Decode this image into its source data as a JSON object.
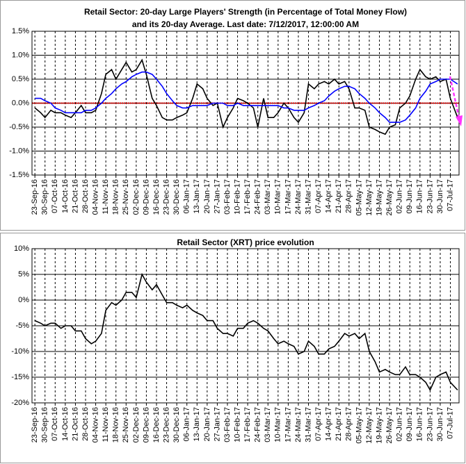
{
  "chart_data": [
    {
      "type": "line",
      "title": [
        "Retail Sector: 20-day Large Players' Strength (in Percentage of Total Money Flow)",
        "and its 20-day Average. Last date: 7/12/2017, 12:00:00 AM"
      ],
      "x": [
        "23-Sep-16",
        "27-Sep-16",
        "30-Sep-16",
        "04-Oct-16",
        "07-Oct-16",
        "11-Oct-16",
        "14-Oct-16",
        "18-Oct-16",
        "21-Oct-16",
        "25-Oct-16",
        "28-Oct-16",
        "01-Nov-16",
        "04-Nov-16",
        "08-Nov-16",
        "11-Nov-16",
        "15-Nov-16",
        "18-Nov-16",
        "22-Nov-16",
        "25-Nov-16",
        "29-Nov-16",
        "02-Dec-16",
        "06-Dec-16",
        "09-Dec-16",
        "13-Dec-16",
        "16-Dec-16",
        "20-Dec-16",
        "23-Dec-16",
        "27-Dec-16",
        "30-Dec-16",
        "03-Jan-17",
        "06-Jan-17",
        "10-Jan-17",
        "13-Jan-17",
        "17-Jan-17",
        "20-Jan-17",
        "24-Jan-17",
        "27-Jan-17",
        "31-Jan-17",
        "03-Feb-17",
        "07-Feb-17",
        "10-Feb-17",
        "14-Feb-17",
        "17-Feb-17",
        "21-Feb-17",
        "24-Feb-17",
        "28-Feb-17",
        "03-Mar-17",
        "07-Mar-17",
        "10-Mar-17",
        "14-Mar-17",
        "17-Mar-17",
        "21-Mar-17",
        "24-Mar-17",
        "28-Mar-17",
        "31-Mar-17",
        "04-Apr-17",
        "07-Apr-17",
        "11-Apr-17",
        "14-Apr-17",
        "18-Apr-17",
        "21-Apr-17",
        "25-Apr-17",
        "28-Apr-17",
        "02-May-17",
        "05-May-17",
        "09-May-17",
        "12-May-17",
        "16-May-17",
        "19-May-17",
        "23-May-17",
        "26-May-17",
        "30-May-17",
        "02-Jun-17",
        "06-Jun-17",
        "09-Jun-17",
        "13-Jun-17",
        "16-Jun-17",
        "20-Jun-17",
        "23-Jun-17",
        "27-Jun-17",
        "30-Jun-17",
        "04-Jul-17",
        "07-Jul-17",
        "12-Jul-17"
      ],
      "series": [
        {
          "color": "#000000",
          "values": [
            -0.1,
            -0.2,
            -0.3,
            -0.15,
            -0.2,
            -0.2,
            -0.25,
            -0.3,
            -0.2,
            -0.05,
            -0.2,
            -0.2,
            -0.15,
            0.2,
            0.6,
            0.7,
            0.5,
            0.7,
            0.85,
            0.65,
            0.7,
            0.9,
            0.6,
            0.1,
            -0.05,
            -0.3,
            -0.35,
            -0.35,
            -0.3,
            -0.25,
            -0.2,
            0.1,
            0.4,
            0.3,
            0.1,
            -0.05,
            0.0,
            -0.5,
            -0.3,
            -0.1,
            0.1,
            0.05,
            0.0,
            -0.1,
            -0.5,
            0.1,
            -0.3,
            -0.3,
            -0.2,
            0.0,
            -0.1,
            -0.3,
            -0.4,
            -0.2,
            0.4,
            0.3,
            0.4,
            0.45,
            0.4,
            0.5,
            0.4,
            0.45,
            0.3,
            -0.1,
            -0.1,
            -0.15,
            -0.5,
            -0.55,
            -0.6,
            -0.65,
            -0.5,
            -0.45,
            -0.1,
            0.0,
            0.15,
            0.5,
            0.7,
            0.55,
            0.5,
            0.55,
            0.45,
            0.5,
            0.1,
            -0.3
          ]
        },
        {
          "color": "#0000ff",
          "values": [
            0.1,
            0.1,
            0.05,
            0.0,
            -0.1,
            -0.15,
            -0.2,
            -0.2,
            -0.2,
            -0.2,
            -0.15,
            -0.15,
            -0.1,
            0.0,
            0.1,
            0.2,
            0.3,
            0.4,
            0.45,
            0.55,
            0.6,
            0.65,
            0.65,
            0.6,
            0.5,
            0.35,
            0.2,
            0.05,
            -0.05,
            -0.1,
            -0.1,
            -0.05,
            -0.05,
            -0.05,
            -0.05,
            0.0,
            0.0,
            0.0,
            -0.05,
            -0.05,
            0.0,
            -0.05,
            -0.05,
            -0.05,
            -0.05,
            -0.05,
            -0.05,
            -0.05,
            -0.05,
            -0.1,
            -0.1,
            -0.15,
            -0.15,
            -0.15,
            -0.1,
            -0.05,
            0.0,
            0.05,
            0.15,
            0.25,
            0.3,
            0.35,
            0.35,
            0.3,
            0.2,
            0.1,
            0.0,
            -0.1,
            -0.2,
            -0.3,
            -0.4,
            -0.4,
            -0.4,
            -0.35,
            -0.25,
            -0.1,
            0.1,
            0.25,
            0.4,
            0.45,
            0.5,
            0.5,
            0.5,
            0.4
          ]
        }
      ],
      "xlim": [
        "21-Sep-16",
        "13-Jul-17"
      ],
      "xticks": [
        "23-Sep-16",
        "30-Sep-16",
        "07-Oct-16",
        "14-Oct-16",
        "21-Oct-16",
        "28-Oct-16",
        "04-Nov-16",
        "11-Nov-16",
        "18-Nov-16",
        "25-Nov-16",
        "02-Dec-16",
        "09-Dec-16",
        "16-Dec-16",
        "23-Dec-16",
        "30-Dec-16",
        "06-Jan-17",
        "13-Jan-17",
        "20-Jan-17",
        "27-Jan-17",
        "03-Feb-17",
        "10-Feb-17",
        "17-Feb-17",
        "24-Feb-17",
        "03-Mar-17",
        "10-Mar-17",
        "17-Mar-17",
        "24-Mar-17",
        "31-Mar-17",
        "07-Apr-17",
        "14-Apr-17",
        "21-Apr-17",
        "28-Apr-17",
        "05-May-17",
        "12-May-17",
        "19-May-17",
        "26-May-17",
        "02-Jun-17",
        "09-Jun-17",
        "16-Jun-17",
        "23-Jun-17",
        "30-Jun-17",
        "07-Jul-17"
      ],
      "ylim": [
        -1.5,
        1.5
      ],
      "yticks": [
        {
          "value": -1.5,
          "label": "-1.5%"
        },
        {
          "value": -1.0,
          "label": "-1.0%"
        },
        {
          "value": -0.5,
          "label": "-0.5%"
        },
        {
          "value": 0.0,
          "label": "0.0%"
        },
        {
          "value": 0.5,
          "label": "0.5%"
        },
        {
          "value": 1.0,
          "label": "1.0%"
        },
        {
          "value": 1.5,
          "label": "1.5%"
        }
      ],
      "grid": true,
      "zero_line_color": "#e00000"
    },
    {
      "type": "line",
      "title": [
        "Retail Sector (XRT) price evolution"
      ],
      "x": [
        "23-Sep-16",
        "27-Sep-16",
        "30-Sep-16",
        "04-Oct-16",
        "07-Oct-16",
        "11-Oct-16",
        "14-Oct-16",
        "18-Oct-16",
        "21-Oct-16",
        "25-Oct-16",
        "28-Oct-16",
        "01-Nov-16",
        "04-Nov-16",
        "08-Nov-16",
        "11-Nov-16",
        "15-Nov-16",
        "18-Nov-16",
        "22-Nov-16",
        "25-Nov-16",
        "29-Nov-16",
        "02-Dec-16",
        "06-Dec-16",
        "09-Dec-16",
        "13-Dec-16",
        "16-Dec-16",
        "20-Dec-16",
        "23-Dec-16",
        "27-Dec-16",
        "30-Dec-16",
        "03-Jan-17",
        "06-Jan-17",
        "10-Jan-17",
        "13-Jan-17",
        "17-Jan-17",
        "20-Jan-17",
        "24-Jan-17",
        "27-Jan-17",
        "31-Jan-17",
        "03-Feb-17",
        "07-Feb-17",
        "10-Feb-17",
        "14-Feb-17",
        "17-Feb-17",
        "21-Feb-17",
        "24-Feb-17",
        "28-Feb-17",
        "03-Mar-17",
        "07-Mar-17",
        "10-Mar-17",
        "14-Mar-17",
        "17-Mar-17",
        "21-Mar-17",
        "24-Mar-17",
        "28-Mar-17",
        "31-Mar-17",
        "04-Apr-17",
        "07-Apr-17",
        "11-Apr-17",
        "14-Apr-17",
        "18-Apr-17",
        "21-Apr-17",
        "25-Apr-17",
        "28-Apr-17",
        "02-May-17",
        "05-May-17",
        "09-May-17",
        "12-May-17",
        "16-May-17",
        "19-May-17",
        "23-May-17",
        "26-May-17",
        "30-May-17",
        "02-Jun-17",
        "06-Jun-17",
        "09-Jun-17",
        "13-Jun-17",
        "16-Jun-17",
        "20-Jun-17",
        "23-Jun-17",
        "27-Jun-17",
        "30-Jun-17",
        "04-Jul-17",
        "07-Jul-17",
        "12-Jul-17"
      ],
      "series": [
        {
          "color": "#000000",
          "values": [
            -4,
            -4.5,
            -5,
            -4.5,
            -4.5,
            -5.5,
            -5,
            -5,
            -6,
            -6,
            -7.5,
            -8.5,
            -8,
            -6.5,
            -2,
            -0.5,
            -1,
            0,
            1.5,
            1.5,
            0.5,
            5,
            3.5,
            2,
            3,
            1,
            -0.5,
            -0.5,
            -1,
            -1.5,
            -1,
            -2,
            -2.5,
            -3,
            -4,
            -4,
            -5.5,
            -6.5,
            -6.5,
            -7,
            -5.5,
            -5.5,
            -4.5,
            -4,
            -4.5,
            -5.5,
            -6,
            -7.5,
            -8.5,
            -8,
            -8.5,
            -9,
            -10.5,
            -10,
            -8,
            -9,
            -10.5,
            -10.5,
            -9.5,
            -9,
            -8,
            -6.5,
            -7,
            -6.5,
            -7.5,
            -6.5,
            -10,
            -12,
            -14,
            -13.5,
            -14,
            -14.5,
            -14.5,
            -13,
            -14.5,
            -14.5,
            -15,
            -16,
            -17.5,
            -15,
            -14.5,
            -14,
            -16,
            -17.5
          ]
        }
      ],
      "xlim": [
        "21-Sep-16",
        "13-Jul-17"
      ],
      "xticks": [
        "23-Sep-16",
        "30-Sep-16",
        "07-Oct-16",
        "14-Oct-16",
        "21-Oct-16",
        "28-Oct-16",
        "04-Nov-16",
        "11-Nov-16",
        "18-Nov-16",
        "25-Nov-16",
        "02-Dec-16",
        "09-Dec-16",
        "16-Dec-16",
        "23-Dec-16",
        "30-Dec-16",
        "06-Jan-17",
        "13-Jan-17",
        "20-Jan-17",
        "27-Jan-17",
        "03-Feb-17",
        "10-Feb-17",
        "17-Feb-17",
        "24-Feb-17",
        "03-Mar-17",
        "10-Mar-17",
        "17-Mar-17",
        "24-Mar-17",
        "31-Mar-17",
        "07-Apr-17",
        "14-Apr-17",
        "21-Apr-17",
        "28-Apr-17",
        "05-May-17",
        "12-May-17",
        "19-May-17",
        "26-May-17",
        "02-Jun-17",
        "09-Jun-17",
        "16-Jun-17",
        "23-Jun-17",
        "30-Jun-17",
        "07-Jul-17"
      ],
      "ylim": [
        -20,
        10
      ],
      "yticks": [
        {
          "value": -20,
          "label": "-20%"
        },
        {
          "value": -15,
          "label": "-15%"
        },
        {
          "value": -10,
          "label": "-10%"
        },
        {
          "value": -5,
          "label": "-5%"
        },
        {
          "value": 0,
          "label": "0%"
        },
        {
          "value": 5,
          "label": "5%"
        },
        {
          "value": 10,
          "label": "10%"
        }
      ],
      "grid": true
    }
  ]
}
